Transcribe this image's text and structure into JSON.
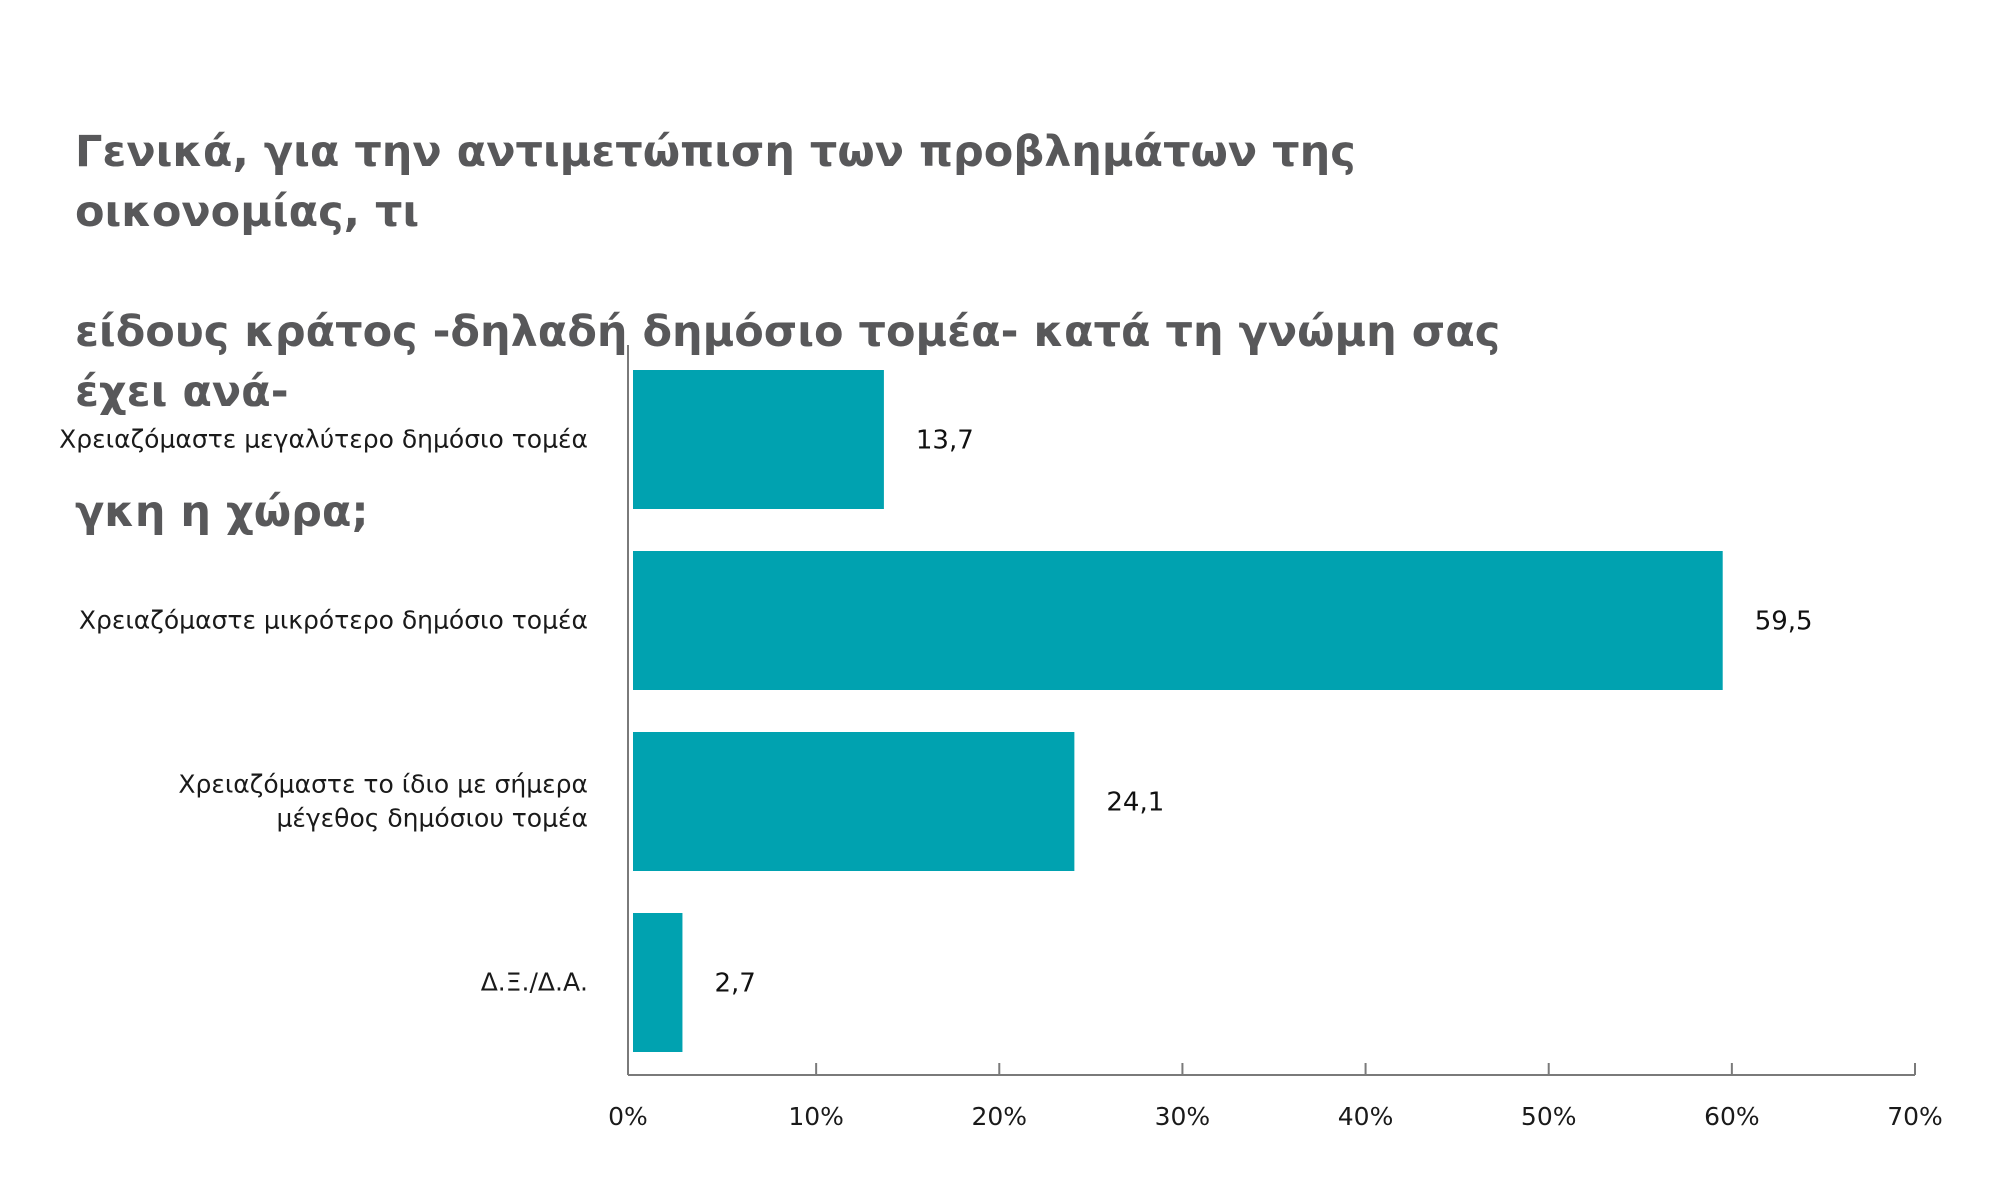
{
  "chart_data": {
    "type": "bar",
    "orientation": "horizontal",
    "title": "Γενικά, για την αντιμετώπιση των προβλημάτων της οικονομίας, τι είδους κράτος -δηλαδή δημόσιο τομέα- κατά τη γνώμη σας έχει ανά-γκη η χώρα;",
    "title_lines": [
      "Γενικά, για την αντιμετώπιση των προβλημάτων της οικονομίας, τι",
      "είδους κράτος -δηλαδή δημόσιο τομέα- κατά τη γνώμη σας έχει ανά-",
      "γκη η χώρα;"
    ],
    "categories": [
      [
        "Χρειαζόμαστε μεγαλύτερο δημόσιο τομέα"
      ],
      [
        "Χρειαζόμαστε μικρότερο δημόσιο τομέα"
      ],
      [
        "Χρειαζόμαστε το ίδιο με σήμερα",
        "μέγεθος δημόσιου τομέα"
      ],
      [
        "Δ.Ξ./Δ.Α."
      ]
    ],
    "values": [
      13.7,
      59.5,
      24.1,
      2.7
    ],
    "value_labels": [
      "13,7",
      "59,5",
      "24,1",
      "2,7"
    ],
    "xlim": [
      0,
      70
    ],
    "xticks": [
      0,
      10,
      20,
      30,
      40,
      50,
      60,
      70
    ],
    "xtick_labels": [
      "0%",
      "10%",
      "20%",
      "30%",
      "40%",
      "50%",
      "60%",
      "70%"
    ],
    "xlabel": "",
    "ylabel": "",
    "grid": false,
    "legend": "none",
    "bar_color": "#00a2b0",
    "axis_color": "#7a7a7a",
    "title_color": "#58585a"
  }
}
